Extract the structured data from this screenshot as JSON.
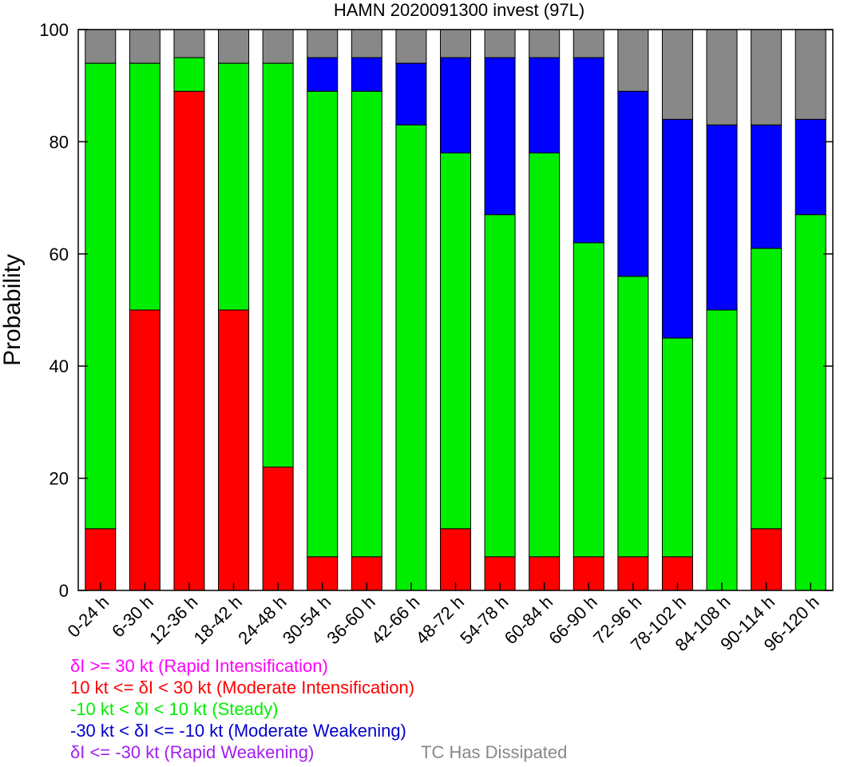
{
  "chart_data": {
    "type": "bar",
    "stacked": true,
    "title": "HAMN 2020091300 invest (97L)",
    "ylabel": "Probability",
    "ylim": [
      0,
      100
    ],
    "yticks": [
      "0",
      "20",
      "40",
      "60",
      "80",
      "100"
    ],
    "categories": [
      "0-24 h",
      "6-30 h",
      "12-36 h",
      "18-42 h",
      "24-48 h",
      "30-54 h",
      "36-60 h",
      "42-66 h",
      "48-72 h",
      "54-78 h",
      "60-84 h",
      "66-90 h",
      "72-96 h",
      "78-102 h",
      "84-108 h",
      "90-114 h",
      "96-120 h"
    ],
    "series": [
      {
        "name": "δI >= 30 kt (Rapid Intensification)",
        "color": "#ff00ff",
        "values": [
          0,
          0,
          0,
          0,
          0,
          0,
          0,
          0,
          0,
          0,
          0,
          0,
          0,
          0,
          0,
          0,
          0
        ]
      },
      {
        "name": "10 kt <= δI < 30 kt (Moderate Intensification)",
        "color": "#ff0000",
        "values": [
          11,
          50,
          89,
          50,
          22,
          6,
          6,
          0,
          11,
          6,
          6,
          6,
          6,
          6,
          0,
          11,
          0
        ]
      },
      {
        "name": "-10 kt < δI < 10 kt (Steady)",
        "color": "#00ee00",
        "values": [
          83,
          44,
          6,
          44,
          72,
          83,
          83,
          83,
          67,
          61,
          72,
          56,
          50,
          39,
          50,
          50,
          67
        ]
      },
      {
        "name": "-30 kt < δI <= -10 kt (Moderate Weakening)",
        "color": "#0000ff",
        "values": [
          0,
          0,
          0,
          0,
          0,
          6,
          6,
          11,
          17,
          28,
          17,
          33,
          33,
          39,
          33,
          22,
          17
        ]
      },
      {
        "name": "δI <= -30 kt (Rapid Weakening)",
        "color": "#a020f0",
        "values": [
          0,
          0,
          0,
          0,
          0,
          0,
          0,
          0,
          0,
          0,
          0,
          0,
          0,
          0,
          0,
          0,
          0
        ]
      },
      {
        "name": "TC Has Dissipated",
        "color": "#888888",
        "values": [
          6,
          6,
          5,
          6,
          6,
          5,
          5,
          6,
          5,
          5,
          5,
          5,
          11,
          16,
          17,
          17,
          16
        ]
      }
    ],
    "legend": [
      {
        "text": "δI >= 30 kt (Rapid Intensification)",
        "color": "#ff00ff"
      },
      {
        "text": "10 kt <= δI < 30 kt (Moderate Intensification)",
        "color": "#ff0000"
      },
      {
        "text": "-10 kt < δI < 10 kt (Steady)",
        "color": "#00ee00"
      },
      {
        "text": "-30 kt < δI <= -10 kt (Moderate Weakening)",
        "color": "#0000cc"
      },
      {
        "text": "δI <= -30 kt (Rapid Weakening)",
        "color": "#a020f0"
      },
      {
        "text": "TC Has Dissipated",
        "color": "#888888"
      }
    ]
  }
}
